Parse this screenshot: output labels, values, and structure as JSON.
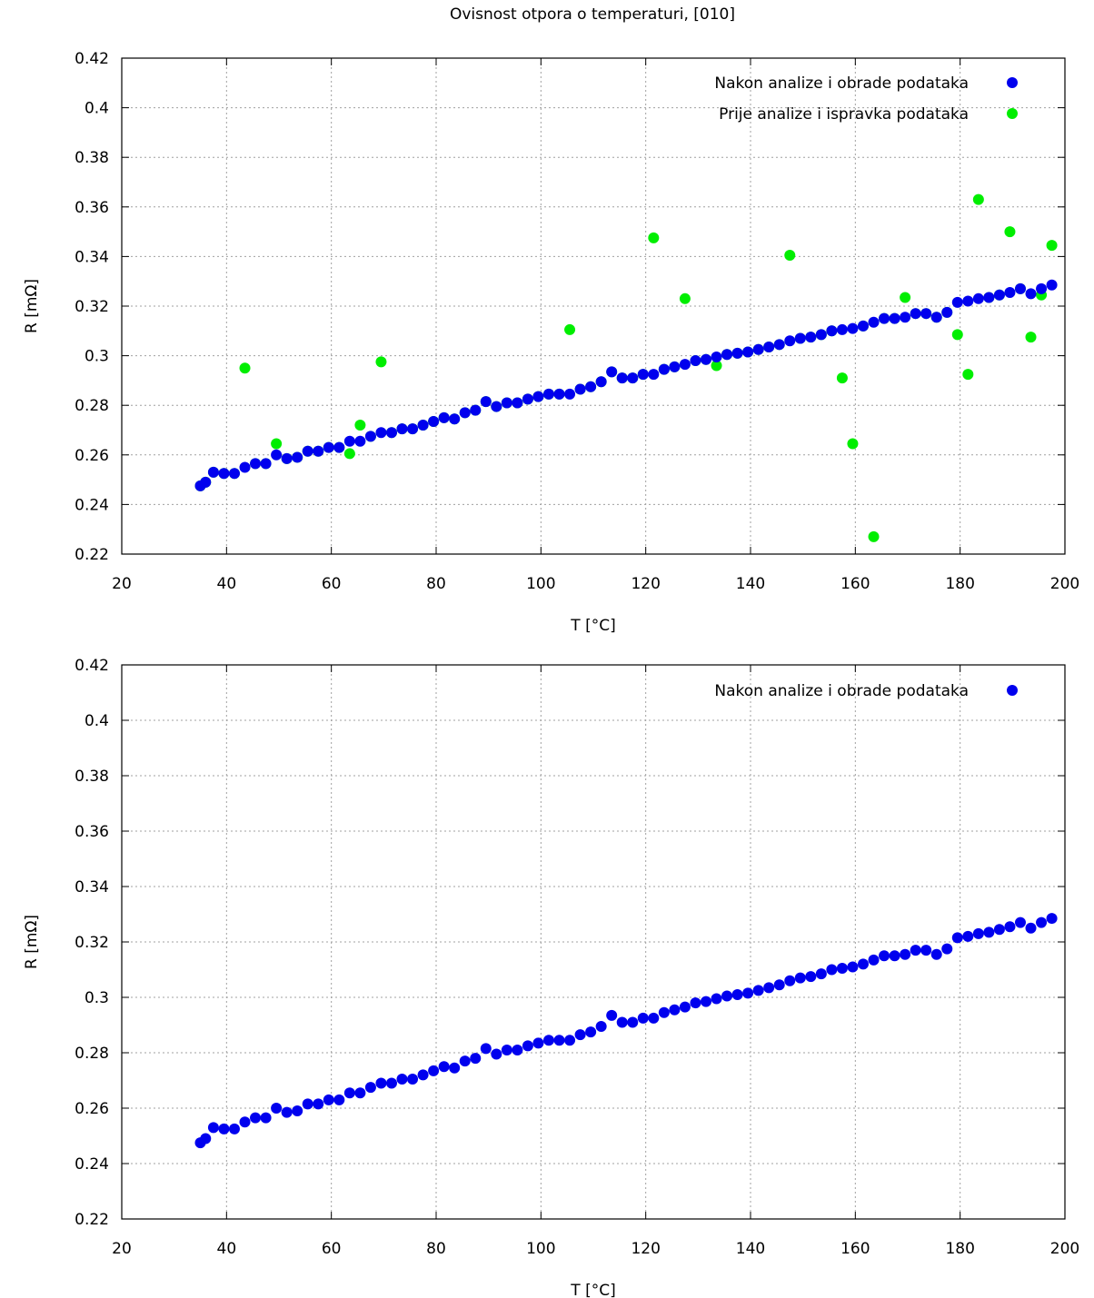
{
  "figure_title": "Ovisnost otpora o temperaturi, [010]",
  "colors": {
    "after": "#0000ee",
    "before": "#00ee00",
    "grid": "#a0a0a0",
    "axis": "#000000"
  },
  "chart_data": [
    {
      "type": "scatter",
      "title": "Ovisnost otpora o temperaturi, [010]",
      "xlabel": "T [°C]",
      "ylabel": "R [mΩ]",
      "xlim": [
        20,
        200
      ],
      "ylim": [
        0.22,
        0.42
      ],
      "xticks": [
        20,
        40,
        60,
        80,
        100,
        120,
        140,
        160,
        180,
        200
      ],
      "yticks": [
        0.22,
        0.24,
        0.26,
        0.28,
        0.3,
        0.32,
        0.34,
        0.36,
        0.38,
        0.4,
        0.42
      ],
      "ytick_labels": [
        "0.22",
        "0.24",
        "0.26",
        "0.28",
        "0.3",
        "0.32",
        "0.34",
        "0.36",
        "0.38",
        "0.4",
        "0.42"
      ],
      "grid": true,
      "legend_position": "top-right",
      "series": [
        {
          "name": "Nakon analize i obrade podataka",
          "color": "#0000ee",
          "points": [
            [
              35,
              0.2475
            ],
            [
              36,
              0.249
            ],
            [
              37.5,
              0.253
            ],
            [
              39.5,
              0.2525
            ],
            [
              41.5,
              0.2525
            ],
            [
              43.5,
              0.255
            ],
            [
              45.5,
              0.2565
            ],
            [
              47.5,
              0.2565
            ],
            [
              49.5,
              0.26
            ],
            [
              51.5,
              0.2585
            ],
            [
              53.5,
              0.259
            ],
            [
              55.5,
              0.2615
            ],
            [
              57.5,
              0.2615
            ],
            [
              59.5,
              0.263
            ],
            [
              61.5,
              0.263
            ],
            [
              63.5,
              0.2655
            ],
            [
              65.5,
              0.2655
            ],
            [
              67.5,
              0.2675
            ],
            [
              69.5,
              0.269
            ],
            [
              71.5,
              0.269
            ],
            [
              73.5,
              0.2705
            ],
            [
              75.5,
              0.2705
            ],
            [
              77.5,
              0.272
            ],
            [
              79.5,
              0.2735
            ],
            [
              81.5,
              0.275
            ],
            [
              83.5,
              0.2745
            ],
            [
              85.5,
              0.277
            ],
            [
              87.5,
              0.278
            ],
            [
              89.5,
              0.2815
            ],
            [
              91.5,
              0.2795
            ],
            [
              93.5,
              0.281
            ],
            [
              95.5,
              0.281
            ],
            [
              97.5,
              0.2825
            ],
            [
              99.5,
              0.2835
            ],
            [
              101.5,
              0.2845
            ],
            [
              103.5,
              0.2845
            ],
            [
              105.5,
              0.2845
            ],
            [
              107.5,
              0.2865
            ],
            [
              109.5,
              0.2875
            ],
            [
              111.5,
              0.2895
            ],
            [
              113.5,
              0.2935
            ],
            [
              115.5,
              0.291
            ],
            [
              117.5,
              0.291
            ],
            [
              119.5,
              0.2925
            ],
            [
              121.5,
              0.2925
            ],
            [
              123.5,
              0.2945
            ],
            [
              125.5,
              0.2955
            ],
            [
              127.5,
              0.2965
            ],
            [
              129.5,
              0.298
            ],
            [
              131.5,
              0.2985
            ],
            [
              133.5,
              0.2995
            ],
            [
              135.5,
              0.3005
            ],
            [
              137.5,
              0.301
            ],
            [
              139.5,
              0.3015
            ],
            [
              141.5,
              0.3025
            ],
            [
              143.5,
              0.3035
            ],
            [
              145.5,
              0.3045
            ],
            [
              147.5,
              0.306
            ],
            [
              149.5,
              0.307
            ],
            [
              151.5,
              0.3075
            ],
            [
              153.5,
              0.3085
            ],
            [
              155.5,
              0.31
            ],
            [
              157.5,
              0.3105
            ],
            [
              159.5,
              0.311
            ],
            [
              161.5,
              0.312
            ],
            [
              163.5,
              0.3135
            ],
            [
              165.5,
              0.315
            ],
            [
              167.5,
              0.315
            ],
            [
              169.5,
              0.3155
            ],
            [
              171.5,
              0.317
            ],
            [
              173.5,
              0.317
            ],
            [
              175.5,
              0.3155
            ],
            [
              177.5,
              0.3175
            ],
            [
              179.5,
              0.3215
            ],
            [
              181.5,
              0.322
            ],
            [
              183.5,
              0.323
            ],
            [
              185.5,
              0.3235
            ],
            [
              187.5,
              0.3245
            ],
            [
              189.5,
              0.3255
            ],
            [
              191.5,
              0.327
            ],
            [
              193.5,
              0.325
            ],
            [
              195.5,
              0.327
            ],
            [
              197.5,
              0.3285
            ]
          ]
        },
        {
          "name": "Prije analize i ispravka podataka",
          "color": "#00ee00",
          "points": [
            [
              35,
              0.2475
            ],
            [
              36,
              0.249
            ],
            [
              37.5,
              0.253
            ],
            [
              39.5,
              0.2525
            ],
            [
              41.5,
              0.2525
            ],
            [
              43.5,
              0.295
            ],
            [
              45.5,
              0.2565
            ],
            [
              47.5,
              0.2565
            ],
            [
              49.5,
              0.2645
            ],
            [
              51.5,
              0.2585
            ],
            [
              53.5,
              0.259
            ],
            [
              55.5,
              0.2615
            ],
            [
              57.5,
              0.2615
            ],
            [
              59.5,
              0.263
            ],
            [
              61.5,
              0.263
            ],
            [
              63.5,
              0.2605
            ],
            [
              65.5,
              0.272
            ],
            [
              67.5,
              0.2675
            ],
            [
              69.5,
              0.2975
            ],
            [
              71.5,
              0.269
            ],
            [
              73.5,
              0.2705
            ],
            [
              75.5,
              0.2705
            ],
            [
              77.5,
              0.272
            ],
            [
              79.5,
              0.2735
            ],
            [
              81.5,
              0.275
            ],
            [
              83.5,
              0.2745
            ],
            [
              85.5,
              0.277
            ],
            [
              87.5,
              0.278
            ],
            [
              89.5,
              0.2815
            ],
            [
              91.5,
              0.2795
            ],
            [
              93.5,
              0.281
            ],
            [
              95.5,
              0.281
            ],
            [
              97.5,
              0.2825
            ],
            [
              99.5,
              0.2835
            ],
            [
              101.5,
              0.2845
            ],
            [
              103.5,
              0.2845
            ],
            [
              105.5,
              0.3105
            ],
            [
              107.5,
              0.2865
            ],
            [
              109.5,
              0.2875
            ],
            [
              111.5,
              0.2895
            ],
            [
              113.5,
              0.2935
            ],
            [
              115.5,
              0.291
            ],
            [
              117.5,
              0.291
            ],
            [
              119.5,
              0.2925
            ],
            [
              121.5,
              0.3475
            ],
            [
              123.5,
              0.2945
            ],
            [
              125.5,
              0.2955
            ],
            [
              127.5,
              0.323
            ],
            [
              129.5,
              0.298
            ],
            [
              131.5,
              0.2985
            ],
            [
              133.5,
              0.296
            ],
            [
              135.5,
              0.3005
            ],
            [
              137.5,
              0.301
            ],
            [
              139.5,
              0.3015
            ],
            [
              141.5,
              0.3025
            ],
            [
              143.5,
              0.3035
            ],
            [
              145.5,
              0.3045
            ],
            [
              147.5,
              0.3405
            ],
            [
              149.5,
              0.307
            ],
            [
              151.5,
              0.3075
            ],
            [
              153.5,
              0.3085
            ],
            [
              155.5,
              0.31
            ],
            [
              157.5,
              0.291
            ],
            [
              159.5,
              0.2645
            ],
            [
              161.5,
              0.312
            ],
            [
              163.5,
              0.227
            ],
            [
              165.5,
              0.315
            ],
            [
              167.5,
              0.315
            ],
            [
              169.5,
              0.3235
            ],
            [
              171.5,
              0.317
            ],
            [
              173.5,
              0.317
            ],
            [
              175.5,
              0.3155
            ],
            [
              177.5,
              0.3175
            ],
            [
              179.5,
              0.3085
            ],
            [
              181.5,
              0.2925
            ],
            [
              183.5,
              0.363
            ],
            [
              185.5,
              0.3235
            ],
            [
              187.5,
              0.3245
            ],
            [
              189.5,
              0.35
            ],
            [
              191.5,
              0.327
            ],
            [
              193.5,
              0.3075
            ],
            [
              195.5,
              0.3245
            ],
            [
              197.5,
              0.3445
            ]
          ]
        }
      ]
    },
    {
      "type": "scatter",
      "title": "",
      "xlabel": "T [°C]",
      "ylabel": "R [mΩ]",
      "xlim": [
        20,
        200
      ],
      "ylim": [
        0.22,
        0.42
      ],
      "xticks": [
        20,
        40,
        60,
        80,
        100,
        120,
        140,
        160,
        180,
        200
      ],
      "yticks": [
        0.22,
        0.24,
        0.26,
        0.28,
        0.3,
        0.32,
        0.34,
        0.36,
        0.38,
        0.4,
        0.42
      ],
      "ytick_labels": [
        "0.22",
        "0.24",
        "0.26",
        "0.28",
        "0.3",
        "0.32",
        "0.34",
        "0.36",
        "0.38",
        "0.4",
        "0.42"
      ],
      "grid": true,
      "legend_position": "top-right",
      "series": [
        {
          "name": "Nakon analize i obrade podataka",
          "color": "#0000ee",
          "points": [
            [
              35,
              0.2475
            ],
            [
              36,
              0.249
            ],
            [
              37.5,
              0.253
            ],
            [
              39.5,
              0.2525
            ],
            [
              41.5,
              0.2525
            ],
            [
              43.5,
              0.255
            ],
            [
              45.5,
              0.2565
            ],
            [
              47.5,
              0.2565
            ],
            [
              49.5,
              0.26
            ],
            [
              51.5,
              0.2585
            ],
            [
              53.5,
              0.259
            ],
            [
              55.5,
              0.2615
            ],
            [
              57.5,
              0.2615
            ],
            [
              59.5,
              0.263
            ],
            [
              61.5,
              0.263
            ],
            [
              63.5,
              0.2655
            ],
            [
              65.5,
              0.2655
            ],
            [
              67.5,
              0.2675
            ],
            [
              69.5,
              0.269
            ],
            [
              71.5,
              0.269
            ],
            [
              73.5,
              0.2705
            ],
            [
              75.5,
              0.2705
            ],
            [
              77.5,
              0.272
            ],
            [
              79.5,
              0.2735
            ],
            [
              81.5,
              0.275
            ],
            [
              83.5,
              0.2745
            ],
            [
              85.5,
              0.277
            ],
            [
              87.5,
              0.278
            ],
            [
              89.5,
              0.2815
            ],
            [
              91.5,
              0.2795
            ],
            [
              93.5,
              0.281
            ],
            [
              95.5,
              0.281
            ],
            [
              97.5,
              0.2825
            ],
            [
              99.5,
              0.2835
            ],
            [
              101.5,
              0.2845
            ],
            [
              103.5,
              0.2845
            ],
            [
              105.5,
              0.2845
            ],
            [
              107.5,
              0.2865
            ],
            [
              109.5,
              0.2875
            ],
            [
              111.5,
              0.2895
            ],
            [
              113.5,
              0.2935
            ],
            [
              115.5,
              0.291
            ],
            [
              117.5,
              0.291
            ],
            [
              119.5,
              0.2925
            ],
            [
              121.5,
              0.2925
            ],
            [
              123.5,
              0.2945
            ],
            [
              125.5,
              0.2955
            ],
            [
              127.5,
              0.2965
            ],
            [
              129.5,
              0.298
            ],
            [
              131.5,
              0.2985
            ],
            [
              133.5,
              0.2995
            ],
            [
              135.5,
              0.3005
            ],
            [
              137.5,
              0.301
            ],
            [
              139.5,
              0.3015
            ],
            [
              141.5,
              0.3025
            ],
            [
              143.5,
              0.3035
            ],
            [
              145.5,
              0.3045
            ],
            [
              147.5,
              0.306
            ],
            [
              149.5,
              0.307
            ],
            [
              151.5,
              0.3075
            ],
            [
              153.5,
              0.3085
            ],
            [
              155.5,
              0.31
            ],
            [
              157.5,
              0.3105
            ],
            [
              159.5,
              0.311
            ],
            [
              161.5,
              0.312
            ],
            [
              163.5,
              0.3135
            ],
            [
              165.5,
              0.315
            ],
            [
              167.5,
              0.315
            ],
            [
              169.5,
              0.3155
            ],
            [
              171.5,
              0.317
            ],
            [
              173.5,
              0.317
            ],
            [
              175.5,
              0.3155
            ],
            [
              177.5,
              0.3175
            ],
            [
              179.5,
              0.3215
            ],
            [
              181.5,
              0.322
            ],
            [
              183.5,
              0.323
            ],
            [
              185.5,
              0.3235
            ],
            [
              187.5,
              0.3245
            ],
            [
              189.5,
              0.3255
            ],
            [
              191.5,
              0.327
            ],
            [
              193.5,
              0.325
            ],
            [
              195.5,
              0.327
            ],
            [
              197.5,
              0.3285
            ]
          ]
        }
      ]
    }
  ]
}
